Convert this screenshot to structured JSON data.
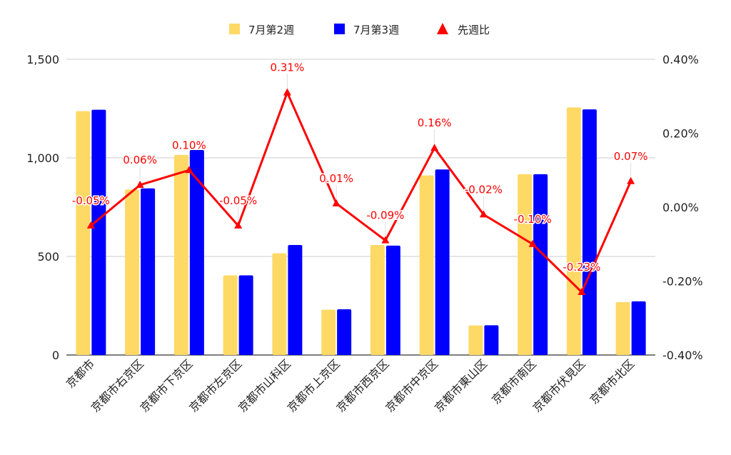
{
  "chart_data": {
    "type": "bar",
    "categories": [
      "京都市",
      "京都市右京区",
      "京都市下京区",
      "京都市左京区",
      "京都市山科区",
      "京都市上京区",
      "京都市西京区",
      "京都市中京区",
      "京都市東山区",
      "京都市南区",
      "京都市伏見区",
      "京都市北区"
    ],
    "series": [
      {
        "name": "7月第2週",
        "type": "bar",
        "axis": "left",
        "color": "#FFD966",
        "values": [
          1237,
          839,
          1015,
          404,
          516,
          230,
          558,
          911,
          150,
          917,
          1256,
          268
        ]
      },
      {
        "name": "7月第3週",
        "type": "bar",
        "axis": "left",
        "color": "#0000FF",
        "values": [
          1244,
          845,
          1040,
          404,
          558,
          232,
          555,
          941,
          151,
          917,
          1246,
          272
        ]
      },
      {
        "name": "先週比",
        "type": "line",
        "axis": "right",
        "color": "#FF0000",
        "marker": "triangle",
        "values": [
          -0.05,
          0.06,
          0.1,
          -0.05,
          0.31,
          0.01,
          -0.09,
          0.16,
          -0.02,
          -0.1,
          -0.23,
          0.07
        ]
      }
    ],
    "data_labels": [
      "-0.05%",
      "0.06%",
      "0.10%",
      "-0.05%",
      "0.31%",
      "0.01%",
      "-0.09%",
      "0.16%",
      "-0.02%",
      "-0.10%",
      "-0.23%",
      "0.07%"
    ],
    "y_left": {
      "min": 0,
      "max": 1500,
      "ticks": [
        0,
        500,
        1000,
        1500
      ],
      "tick_labels": [
        "0",
        "500",
        "1,000",
        "1,500"
      ]
    },
    "y_right": {
      "min": -0.4,
      "max": 0.4,
      "ticks": [
        -0.4,
        -0.2,
        0,
        0.2,
        0.4
      ],
      "tick_labels": [
        "-0.40%",
        "-0.20%",
        "0.00%",
        "0.20%",
        "0.40%"
      ]
    },
    "legend": {
      "position": "top-center"
    },
    "grid": true,
    "title": "",
    "xlabel": "",
    "ylabel": ""
  }
}
